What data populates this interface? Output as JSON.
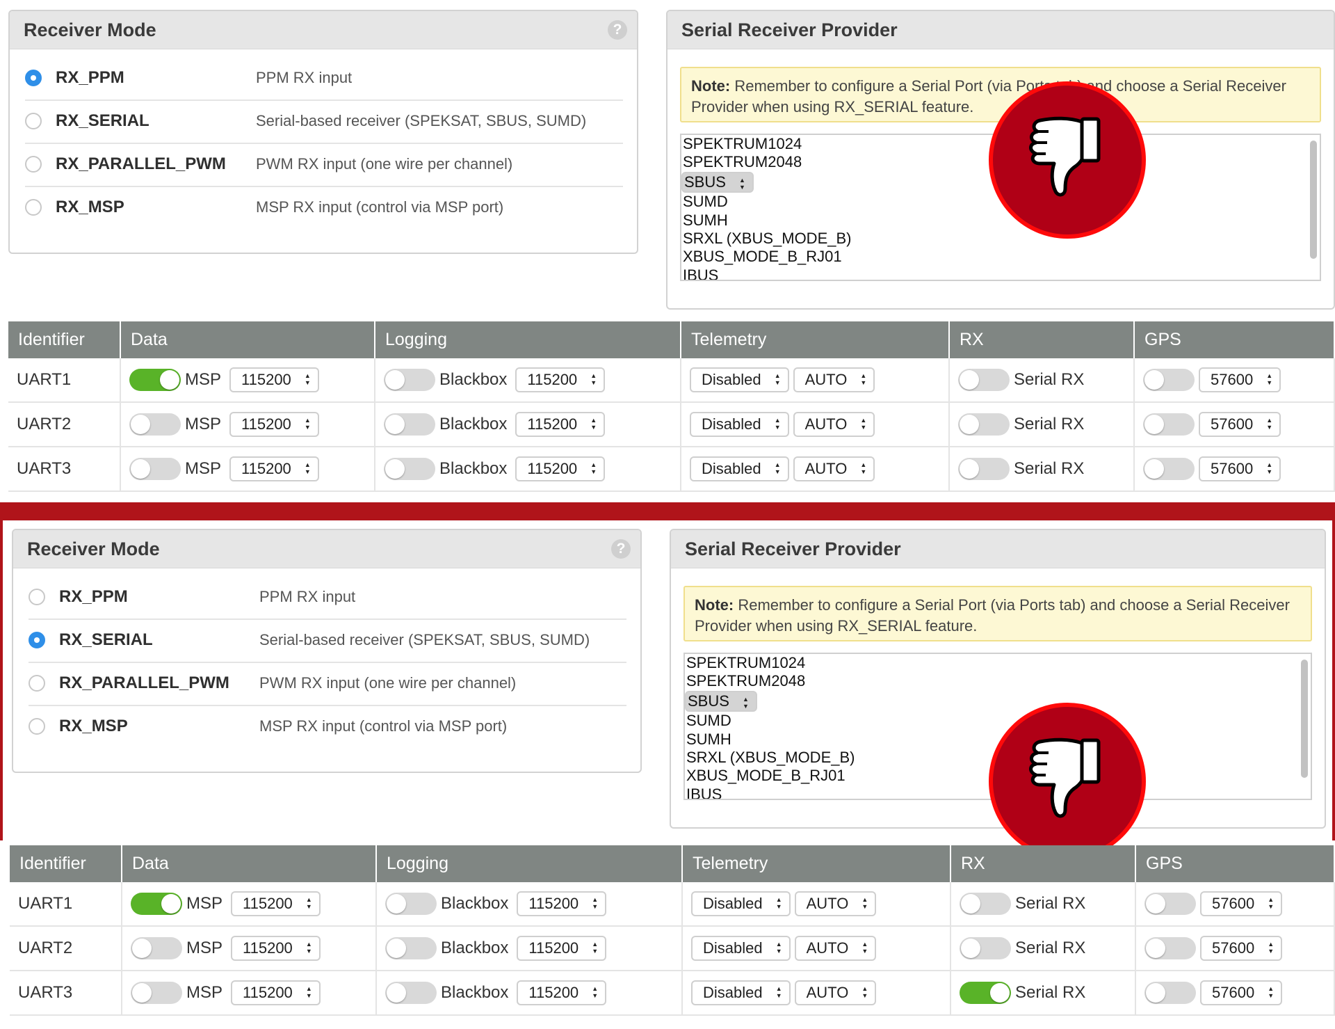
{
  "receiver_mode": {
    "title": "Receiver Mode",
    "help": "?",
    "modes": [
      {
        "name": "RX_PPM",
        "desc": "PPM RX input"
      },
      {
        "name": "RX_SERIAL",
        "desc": "Serial-based receiver (SPEKSAT, SBUS, SUMD)"
      },
      {
        "name": "RX_PARALLEL_PWM",
        "desc": "PWM RX input (one wire per channel)"
      },
      {
        "name": "RX_MSP",
        "desc": "MSP RX input (control via MSP port)"
      }
    ]
  },
  "serial_provider": {
    "title": "Serial Receiver Provider",
    "note_label": "Note:",
    "note_text": "Remember to configure a Serial Port (via Ports tab) and choose a Serial Receiver Provider when using RX_SERIAL feature.",
    "options": [
      "SPEKTRUM1024",
      "SPEKTRUM2048",
      "SBUS",
      "SUMD",
      "SUMH",
      "SRXL (XBUS_MODE_B)",
      "XBUS_MODE_B_RJ01",
      "IBUS"
    ],
    "selected": "SBUS"
  },
  "ports": {
    "headers": [
      "Identifier",
      "Data",
      "Logging",
      "Telemetry",
      "RX",
      "GPS"
    ],
    "data_label": "MSP",
    "logging_label": "Blackbox",
    "rx_label": "Serial RX",
    "rows": [
      {
        "id": "UART1",
        "baud": "115200",
        "log_baud": "115200",
        "telemetry": "Disabled",
        "tel_baud": "AUTO",
        "gps_baud": "57600"
      },
      {
        "id": "UART2",
        "baud": "115200",
        "log_baud": "115200",
        "telemetry": "Disabled",
        "tel_baud": "AUTO",
        "gps_baud": "57600"
      },
      {
        "id": "UART3",
        "baud": "115200",
        "log_baud": "115200",
        "telemetry": "Disabled",
        "tel_baud": "AUTO",
        "gps_baud": "57600"
      }
    ]
  },
  "screens": [
    {
      "selected_mode": "RX_PPM",
      "toggles": {
        "UART1": {
          "data": true,
          "logging": false,
          "rx": false,
          "gps": false
        },
        "UART2": {
          "data": false,
          "logging": false,
          "rx": false,
          "gps": false
        },
        "UART3": {
          "data": false,
          "logging": false,
          "rx": false,
          "gps": false
        }
      },
      "overlay_icon": "thumbs-down-icon"
    },
    {
      "selected_mode": "RX_SERIAL",
      "toggles": {
        "UART1": {
          "data": true,
          "logging": false,
          "rx": false,
          "gps": false
        },
        "UART2": {
          "data": false,
          "logging": false,
          "rx": false,
          "gps": false
        },
        "UART3": {
          "data": false,
          "logging": false,
          "rx": true,
          "gps": false
        }
      },
      "overlay_icon": "thumbs-down-icon"
    }
  ],
  "colors": {
    "accent_blue": "#2f8fe8",
    "toggle_on": "#59b328",
    "table_header": "#808683",
    "separator_red": "#b0141a",
    "thumb_red": "#b00016"
  }
}
